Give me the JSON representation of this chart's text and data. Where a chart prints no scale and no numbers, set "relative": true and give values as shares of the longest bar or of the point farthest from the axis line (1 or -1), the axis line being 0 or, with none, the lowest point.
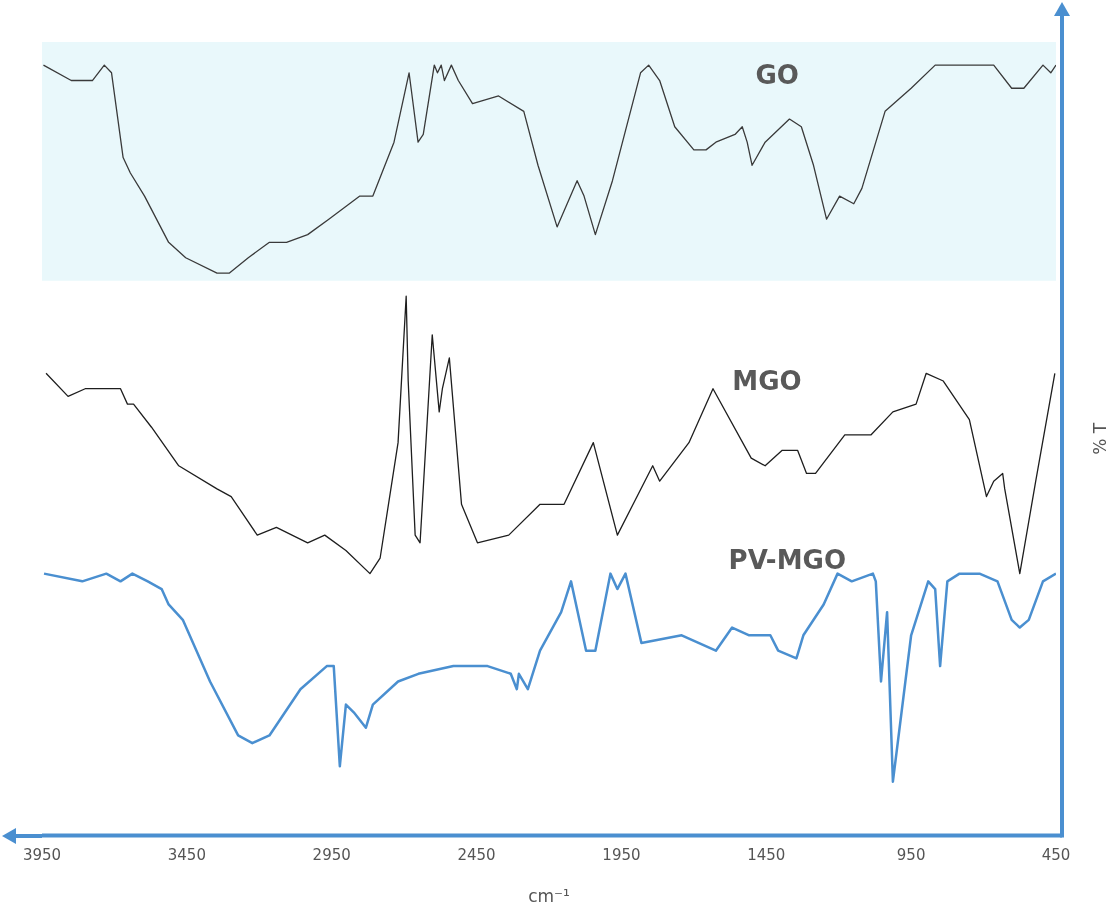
{
  "chart_data": {
    "type": "line",
    "xlabel": "cm⁻¹",
    "ylabel": "% T",
    "relative": true,
    "xlim": [
      3950,
      450
    ],
    "xticks": [
      3950,
      3450,
      2950,
      2450,
      1950,
      1450,
      950,
      450
    ],
    "grid": false,
    "legend": false,
    "marker": "none",
    "bands": [
      {
        "axis": "y",
        "from": 0.72,
        "to": 1.03,
        "color": "#e9f8fb"
      }
    ],
    "series": [
      {
        "name": "GO",
        "color": "#3a3a3a",
        "x": [
          3945,
          3849,
          3776,
          3735,
          3710,
          3670,
          3645,
          3596,
          3513,
          3454,
          3346,
          3304,
          3238,
          3165,
          3106,
          3033,
          2960,
          2853,
          2808,
          2735,
          2683,
          2676,
          2652,
          2634,
          2596,
          2585,
          2572,
          2561,
          2537,
          2513,
          2464,
          2374,
          2287,
          2238,
          2172,
          2103,
          2079,
          2040,
          1981,
          1884,
          1856,
          1818,
          1766,
          1700,
          1658,
          1624,
          1558,
          1533,
          1516,
          1499,
          1454,
          1370,
          1329,
          1287,
          1242,
          1197,
          1148,
          1120,
          1040,
          950,
          867,
          665,
          603,
          561,
          495,
          468,
          450
        ],
        "values": [
          1.0,
          0.98,
          0.98,
          1.0,
          0.99,
          0.88,
          0.86,
          0.83,
          0.77,
          0.75,
          0.73,
          0.73,
          0.75,
          0.77,
          0.77,
          0.78,
          0.8,
          0.83,
          0.83,
          0.9,
          0.99,
          0.97,
          0.9,
          0.91,
          1.0,
          0.99,
          1.0,
          0.98,
          1.0,
          0.98,
          0.95,
          0.96,
          0.94,
          0.87,
          0.79,
          0.85,
          0.83,
          0.78,
          0.85,
          0.99,
          1.0,
          0.98,
          0.92,
          0.89,
          0.89,
          0.9,
          0.91,
          0.92,
          0.9,
          0.87,
          0.9,
          0.93,
          0.92,
          0.87,
          0.8,
          0.83,
          0.82,
          0.84,
          0.94,
          0.97,
          1.0,
          1.0,
          0.97,
          0.97,
          1.0,
          0.99,
          1.0
        ]
      },
      {
        "name": "MGO",
        "color": "#1e1e1e",
        "x": [
          3936,
          3860,
          3801,
          3679,
          3655,
          3634,
          3572,
          3478,
          3346,
          3297,
          3207,
          3141,
          3033,
          2974,
          2901,
          2818,
          2783,
          2721,
          2693,
          2686,
          2662,
          2645,
          2603,
          2579,
          2568,
          2544,
          2502,
          2447,
          2339,
          2231,
          2158,
          2148,
          2047,
          1964,
          1842,
          1818,
          1717,
          1634,
          1502,
          1454,
          1395,
          1342,
          1311,
          1280,
          1179,
          1089,
          1013,
          933,
          898,
          839,
          749,
          690,
          665,
          634,
          627,
          575,
          520,
          454
        ],
        "values": [
          0.6,
          0.57,
          0.58,
          0.58,
          0.56,
          0.56,
          0.53,
          0.48,
          0.45,
          0.44,
          0.39,
          0.4,
          0.38,
          0.39,
          0.37,
          0.34,
          0.36,
          0.51,
          0.7,
          0.59,
          0.39,
          0.38,
          0.65,
          0.55,
          0.58,
          0.62,
          0.43,
          0.38,
          0.39,
          0.43,
          0.43,
          0.43,
          0.51,
          0.39,
          0.48,
          0.46,
          0.51,
          0.58,
          0.49,
          0.48,
          0.5,
          0.5,
          0.47,
          0.47,
          0.52,
          0.52,
          0.55,
          0.56,
          0.6,
          0.59,
          0.54,
          0.44,
          0.46,
          0.47,
          0.45,
          0.34,
          0.46,
          0.6
        ]
      },
      {
        "name": "PV-MGO",
        "color": "#4a8fd0",
        "x": [
          3943,
          3811,
          3728,
          3679,
          3638,
          3585,
          3537,
          3513,
          3464,
          3370,
          3273,
          3224,
          3165,
          3058,
          2967,
          2943,
          2922,
          2901,
          2874,
          2832,
          2808,
          2721,
          2651,
          2530,
          2412,
          2332,
          2311,
          2304,
          2273,
          2231,
          2158,
          2124,
          2072,
          2040,
          1988,
          1964,
          1936,
          1881,
          1742,
          1624,
          1568,
          1509,
          1436,
          1409,
          1346,
          1322,
          1252,
          1204,
          1155,
          1082,
          1072,
          1054,
          1033,
          1013,
          950,
          891,
          867,
          850,
          825,
          783,
          714,
          652,
          603,
          575,
          544,
          495,
          450
        ],
        "values": [
          0.34,
          0.33,
          0.34,
          0.33,
          0.34,
          0.33,
          0.32,
          0.3,
          0.28,
          0.2,
          0.13,
          0.12,
          0.13,
          0.19,
          0.22,
          0.22,
          0.09,
          0.17,
          0.16,
          0.14,
          0.17,
          0.2,
          0.21,
          0.22,
          0.22,
          0.21,
          0.19,
          0.21,
          0.19,
          0.24,
          0.29,
          0.33,
          0.24,
          0.24,
          0.34,
          0.32,
          0.34,
          0.25,
          0.26,
          0.24,
          0.27,
          0.26,
          0.26,
          0.24,
          0.23,
          0.26,
          0.3,
          0.34,
          0.33,
          0.34,
          0.33,
          0.2,
          0.29,
          0.07,
          0.26,
          0.33,
          0.32,
          0.22,
          0.33,
          0.34,
          0.34,
          0.33,
          0.28,
          0.27,
          0.28,
          0.33,
          0.34
        ]
      }
    ]
  }
}
